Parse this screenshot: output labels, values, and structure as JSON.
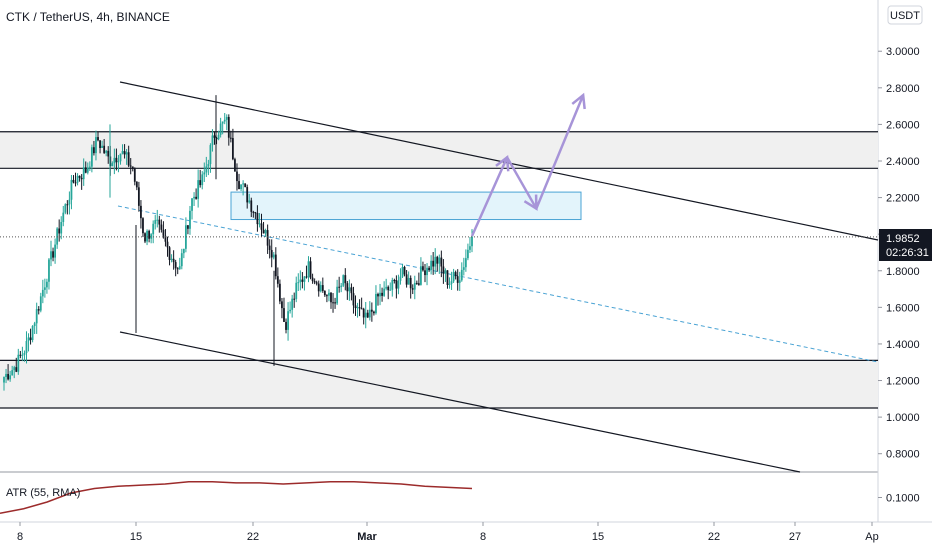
{
  "header": {
    "symbol_title": "CTK / TetherUS, 4h, BINANCE",
    "currency_button": "USDT"
  },
  "colors": {
    "bull": "#26a69a",
    "bear": "#131722",
    "zone_fill": "#f0f0f0",
    "target_box_fill": "#e3f4fb",
    "target_box_stroke": "#4aa3d4",
    "projection": "#a794d8",
    "atr_line": "#9c2b2b",
    "trendline": "#131722",
    "dashed_trend": "#4aa3d4"
  },
  "chart_data": {
    "type": "candlestick",
    "symbol": "CTK / TetherUS",
    "interval": "4h",
    "exchange": "BINANCE",
    "current_price": "1.9852",
    "countdown": "02:26:31",
    "y_tick_labels": [
      "3.0000",
      "2.8000",
      "2.6000",
      "2.4000",
      "2.2000",
      "2.0000",
      "1.8000",
      "1.6000",
      "1.4000",
      "1.2000",
      "1.0000",
      "0.8000"
    ],
    "x_tick_labels": [
      "8",
      "15",
      "22",
      "Mar",
      "8",
      "15",
      "22",
      "27",
      "Ap"
    ],
    "ylim": [
      0.7,
      3.28
    ],
    "xlim": [
      0,
      77
    ],
    "price_series_close": [
      {
        "x": 0,
        "y": 1.22
      },
      {
        "x": 1,
        "y": 1.28
      },
      {
        "x": 2,
        "y": 1.4
      },
      {
        "x": 3,
        "y": 1.62
      },
      {
        "x": 4,
        "y": 1.86
      },
      {
        "x": 5,
        "y": 2.1
      },
      {
        "x": 6,
        "y": 2.3
      },
      {
        "x": 7,
        "y": 2.35
      },
      {
        "x": 8,
        "y": 2.52
      },
      {
        "x": 9,
        "y": 2.4
      },
      {
        "x": 10,
        "y": 2.45
      },
      {
        "x": 11,
        "y": 2.36
      },
      {
        "x": 12,
        "y": 1.98
      },
      {
        "x": 13,
        "y": 2.05
      },
      {
        "x": 14,
        "y": 1.92
      },
      {
        "x": 15,
        "y": 1.8
      },
      {
        "x": 16,
        "y": 2.18
      },
      {
        "x": 17,
        "y": 2.3
      },
      {
        "x": 18,
        "y": 2.55
      },
      {
        "x": 19,
        "y": 2.62
      },
      {
        "x": 20,
        "y": 2.3
      },
      {
        "x": 21,
        "y": 2.18
      },
      {
        "x": 22,
        "y": 2.05
      },
      {
        "x": 23,
        "y": 1.9
      },
      {
        "x": 24,
        "y": 1.5
      },
      {
        "x": 25,
        "y": 1.7
      },
      {
        "x": 26,
        "y": 1.82
      },
      {
        "x": 27,
        "y": 1.72
      },
      {
        "x": 28,
        "y": 1.62
      },
      {
        "x": 29,
        "y": 1.74
      },
      {
        "x": 30,
        "y": 1.6
      },
      {
        "x": 31,
        "y": 1.52
      },
      {
        "x": 32,
        "y": 1.66
      },
      {
        "x": 33,
        "y": 1.7
      },
      {
        "x": 34,
        "y": 1.78
      },
      {
        "x": 35,
        "y": 1.72
      },
      {
        "x": 36,
        "y": 1.82
      },
      {
        "x": 37,
        "y": 1.86
      },
      {
        "x": 38,
        "y": 1.74
      },
      {
        "x": 39,
        "y": 1.78
      },
      {
        "x": 40,
        "y": 1.9852
      }
    ],
    "levels": {
      "resistance_zone": [
        2.36,
        2.56
      ],
      "support_zone": [
        1.05,
        1.31
      ],
      "target_box": [
        2.08,
        2.23
      ]
    },
    "projection_path": [
      {
        "x": 40,
        "y": 1.99
      },
      {
        "x": 43,
        "y": 2.42
      },
      {
        "x": 45.5,
        "y": 2.14
      },
      {
        "x": 49.5,
        "y": 2.76
      }
    ],
    "atr": {
      "label": "ATR (55, RMA)",
      "y_tick_label": "0.1000",
      "values": [
        0.03,
        0.05,
        0.08,
        0.12,
        0.14,
        0.15,
        0.155,
        0.16,
        0.17,
        0.17,
        0.165,
        0.165,
        0.16,
        0.165,
        0.17,
        0.17,
        0.165,
        0.16,
        0.15,
        0.145,
        0.14
      ]
    }
  }
}
